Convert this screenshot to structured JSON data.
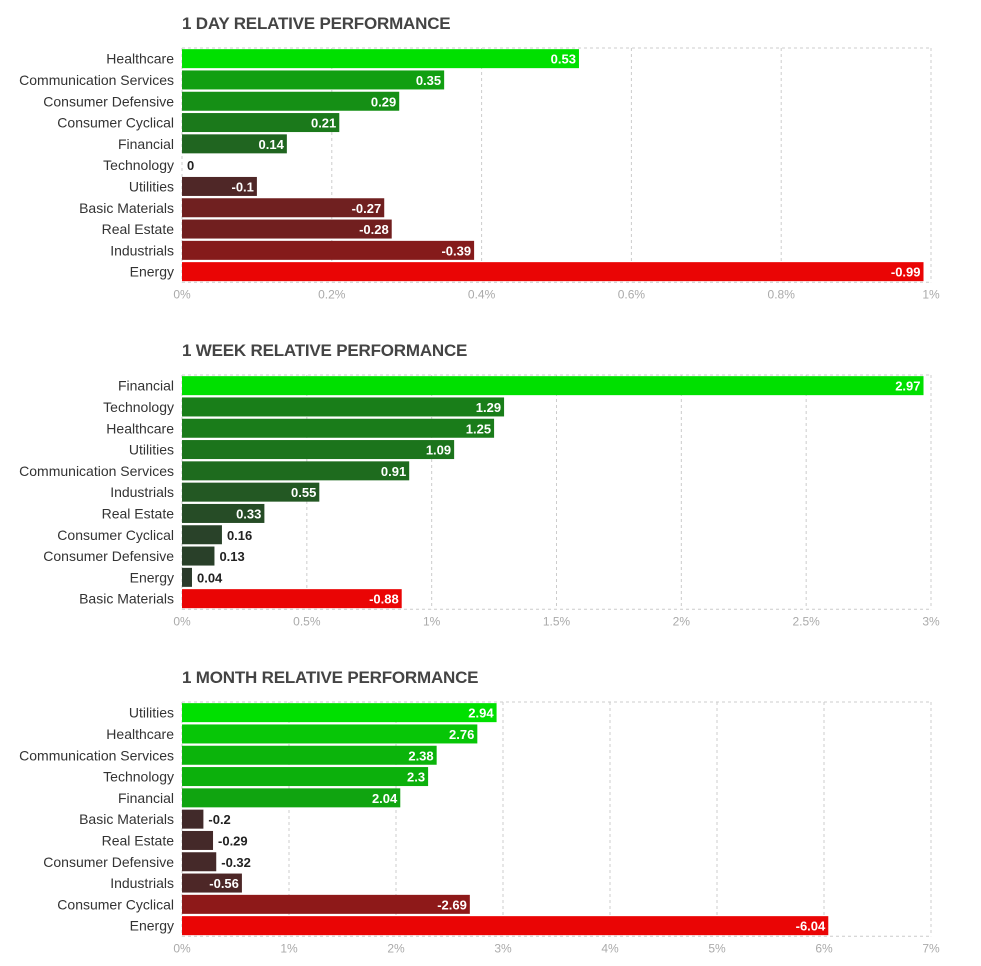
{
  "chart_data": [
    {
      "type": "bar",
      "orientation": "horizontal",
      "title": "1 DAY RELATIVE PERFORMANCE",
      "categories": [
        "Healthcare",
        "Communication Services",
        "Consumer Defensive",
        "Consumer Cyclical",
        "Financial",
        "Technology",
        "Utilities",
        "Basic Materials",
        "Real Estate",
        "Industrials",
        "Energy"
      ],
      "values": [
        0.53,
        0.35,
        0.29,
        0.21,
        0.14,
        0,
        -0.1,
        -0.27,
        -0.28,
        -0.39,
        -0.99
      ],
      "value_labels": [
        "0.53",
        "0.35",
        "0.29",
        "0.21",
        "0.14",
        "0",
        "-0.1",
        "-0.27",
        "-0.28",
        "-0.39",
        "-0.99"
      ],
      "bar_scale": "absolute value",
      "xlim": [
        0,
        1
      ],
      "xticks": [
        "0%",
        "0.2%",
        "0.4%",
        "0.6%",
        "0.8%",
        "1%"
      ],
      "grid": true
    },
    {
      "type": "bar",
      "orientation": "horizontal",
      "title": "1 WEEK RELATIVE PERFORMANCE",
      "categories": [
        "Financial",
        "Technology",
        "Healthcare",
        "Utilities",
        "Communication Services",
        "Industrials",
        "Real Estate",
        "Consumer Cyclical",
        "Consumer Defensive",
        "Energy",
        "Basic Materials"
      ],
      "values": [
        2.97,
        1.29,
        1.25,
        1.09,
        0.91,
        0.55,
        0.33,
        0.16,
        0.13,
        0.04,
        -0.88
      ],
      "value_labels": [
        "2.97",
        "1.29",
        "1.25",
        "1.09",
        "0.91",
        "0.55",
        "0.33",
        "0.16",
        "0.13",
        "0.04",
        "-0.88"
      ],
      "bar_scale": "absolute value",
      "xlim": [
        0,
        3
      ],
      "xticks": [
        "0%",
        "0.5%",
        "1%",
        "1.5%",
        "2%",
        "2.5%",
        "3%"
      ],
      "grid": true
    },
    {
      "type": "bar",
      "orientation": "horizontal",
      "title": "1 MONTH RELATIVE PERFORMANCE",
      "categories": [
        "Utilities",
        "Healthcare",
        "Communication Services",
        "Technology",
        "Financial",
        "Basic Materials",
        "Real Estate",
        "Consumer Defensive",
        "Industrials",
        "Consumer Cyclical",
        "Energy"
      ],
      "values": [
        2.94,
        2.76,
        2.38,
        2.3,
        2.04,
        -0.2,
        -0.29,
        -0.32,
        -0.56,
        -2.69,
        -6.04
      ],
      "value_labels": [
        "2.94",
        "2.76",
        "2.38",
        "2.3",
        "2.04",
        "-0.2",
        "-0.29",
        "-0.32",
        "-0.56",
        "-2.69",
        "-6.04"
      ],
      "bar_scale": "absolute value",
      "xlim": [
        0,
        7
      ],
      "xticks": [
        "0%",
        "1%",
        "2%",
        "3%",
        "4%",
        "5%",
        "6%",
        "7%"
      ],
      "grid": true
    }
  ],
  "colors": {
    "positive_max": "#00e000",
    "negative_max": "#ff0000",
    "neutral": "#2e2e2e",
    "grid": "#cccccc"
  }
}
